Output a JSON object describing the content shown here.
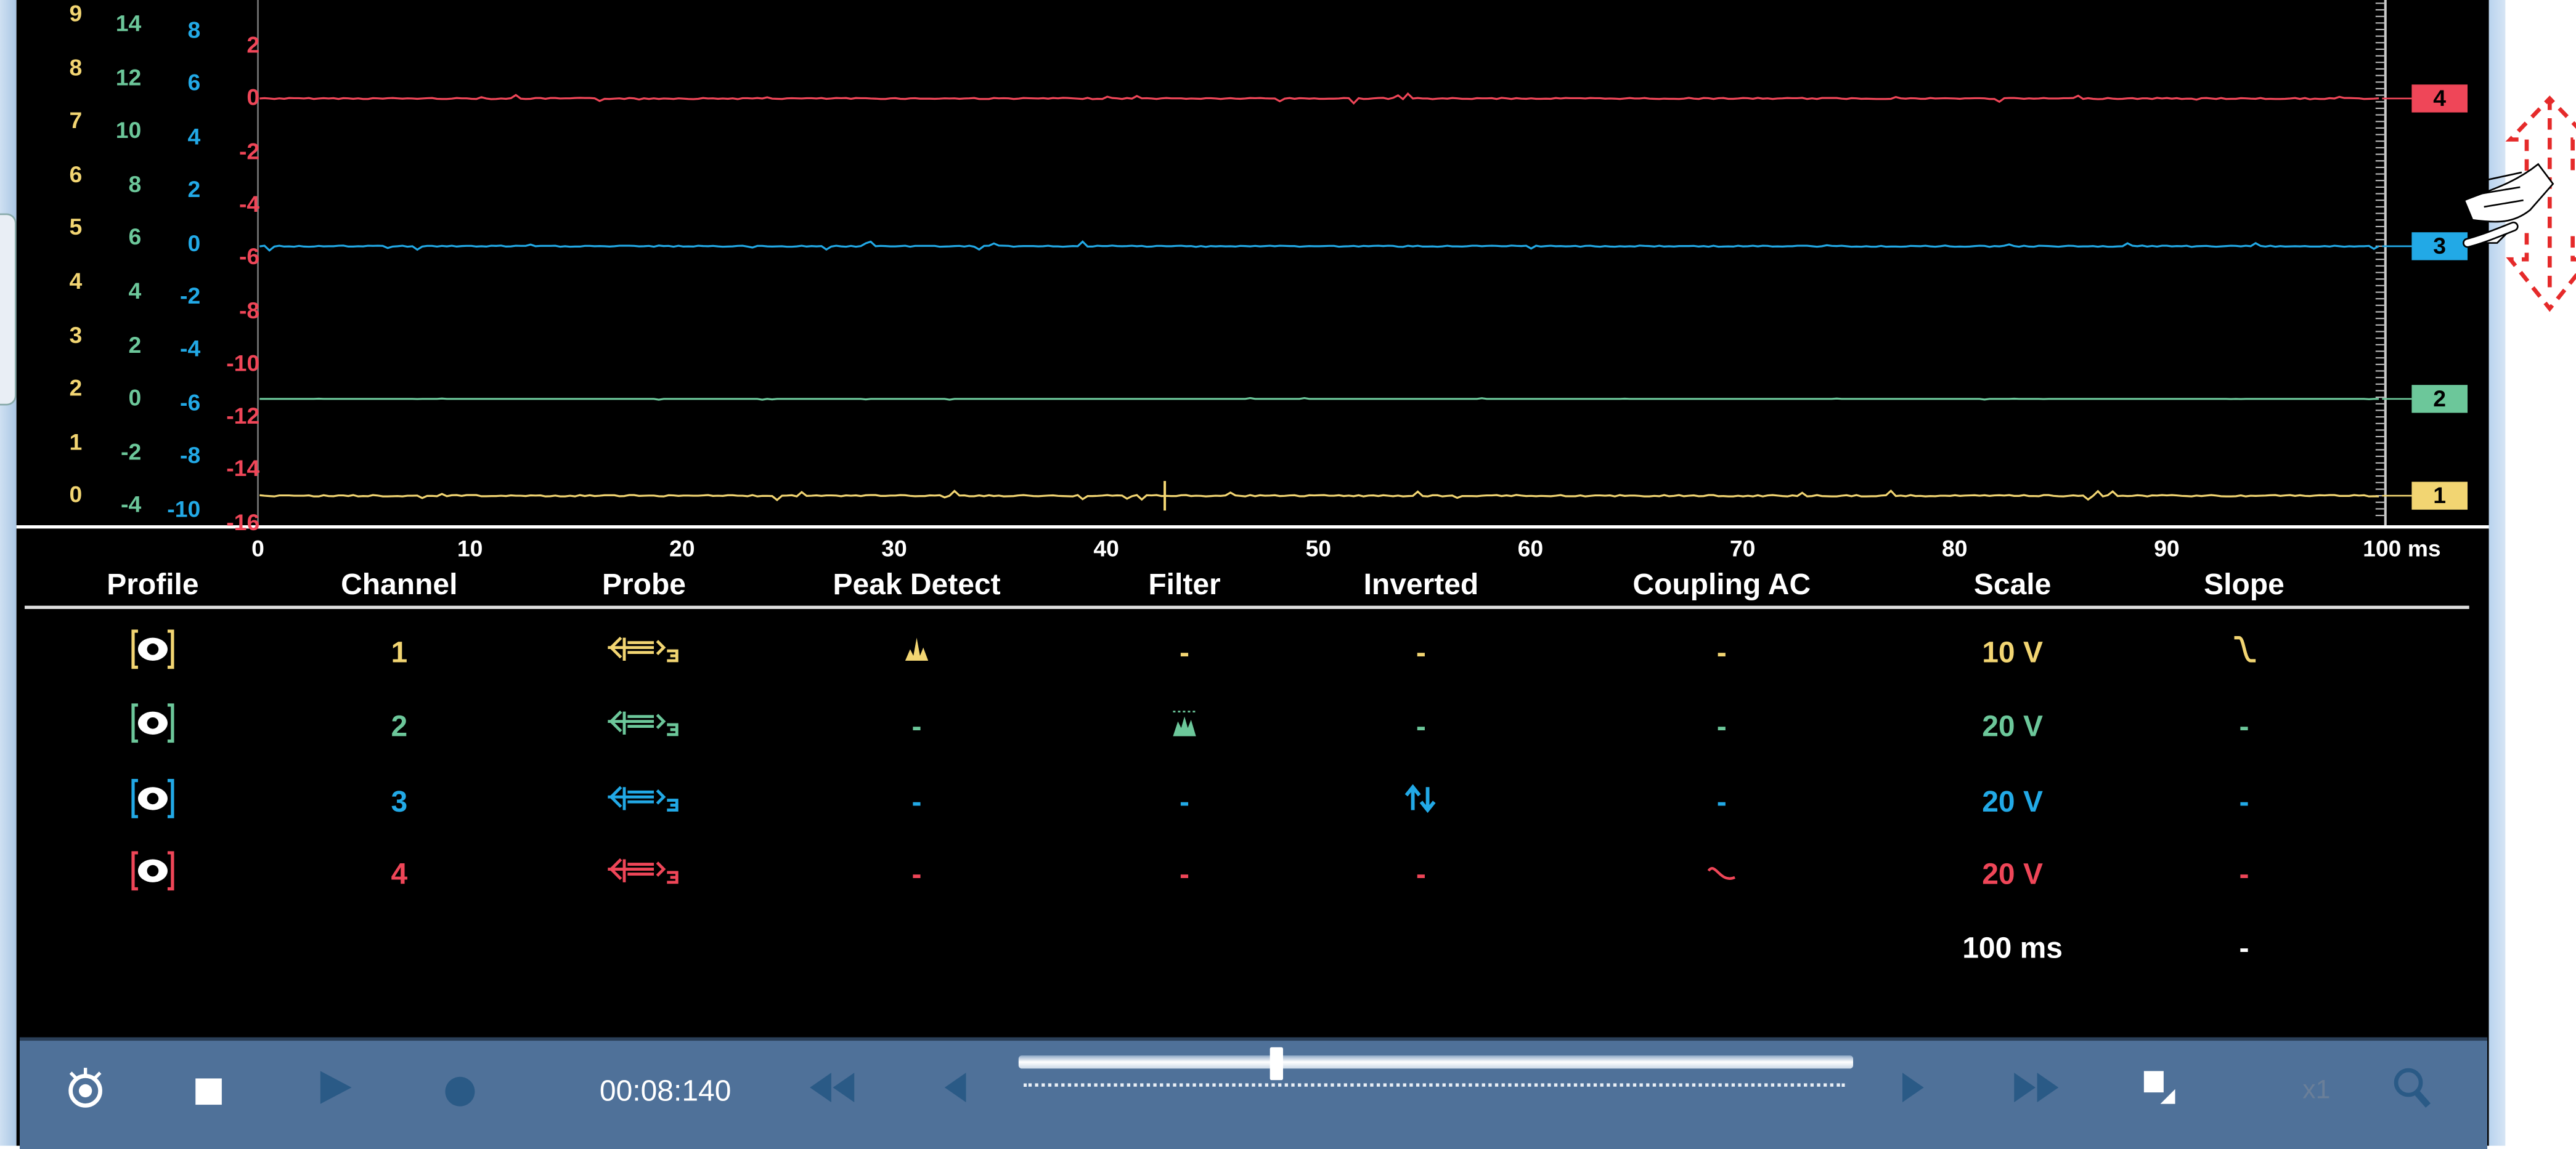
{
  "colors": {
    "ch1": "#f2d572",
    "ch2": "#6cc79a",
    "ch3": "#22a9e6",
    "ch4": "#ef4658",
    "toolbar": "#4f7199"
  },
  "y_axes": {
    "ch1": [
      "9",
      "8",
      "7",
      "6",
      "5",
      "4",
      "3",
      "2",
      "1",
      "0"
    ],
    "ch2": [
      "14",
      "12",
      "10",
      "8",
      "6",
      "4",
      "2",
      "0",
      "-2",
      "-4"
    ],
    "ch3": [
      "8",
      "6",
      "4",
      "2",
      "0",
      "-2",
      "-4",
      "-6",
      "-8",
      "-10"
    ],
    "ch4": [
      "2",
      "0",
      "-2",
      "-4",
      "-6",
      "-8",
      "-10",
      "-12",
      "-14",
      "-16"
    ]
  },
  "x_axis": {
    "ticks": [
      "0",
      "10",
      "20",
      "30",
      "40",
      "50",
      "60",
      "70",
      "80",
      "90",
      "100 ms"
    ]
  },
  "channel_markers": [
    "1",
    "2",
    "3",
    "4"
  ],
  "table": {
    "headers": [
      "Profile",
      "Channel",
      "Probe",
      "Peak Detect",
      "Filter",
      "Inverted",
      "Coupling AC",
      "Scale",
      "Slope"
    ],
    "rows": [
      {
        "channel": "1",
        "peak": "peak-detect-icon",
        "filter": "-",
        "inverted": "-",
        "coupling": "-",
        "scale": "10 V",
        "slope": "falling-slope-icon"
      },
      {
        "channel": "2",
        "peak": "-",
        "filter": "filter-icon",
        "inverted": "-",
        "coupling": "-",
        "scale": "20 V",
        "slope": "-"
      },
      {
        "channel": "3",
        "peak": "-",
        "filter": "-",
        "inverted": "inverted-icon",
        "coupling": "-",
        "scale": "20 V",
        "slope": "-"
      },
      {
        "channel": "4",
        "peak": "-",
        "filter": "-",
        "inverted": "-",
        "coupling": "ac-coupling-icon",
        "scale": "20 V",
        "slope": "-"
      }
    ],
    "timebase": {
      "scale": "100 ms",
      "slope": "-"
    }
  },
  "toolbar": {
    "time": "00:08:140",
    "zoom_label": "x1",
    "slider_position": 0.31,
    "icons": [
      "camera-icon",
      "stop-icon",
      "play-icon",
      "record-icon",
      "rewind-icon",
      "step-back-icon",
      "step-forward-icon",
      "fast-forward-icon",
      "resize-icon",
      "zoom-icon"
    ]
  }
}
